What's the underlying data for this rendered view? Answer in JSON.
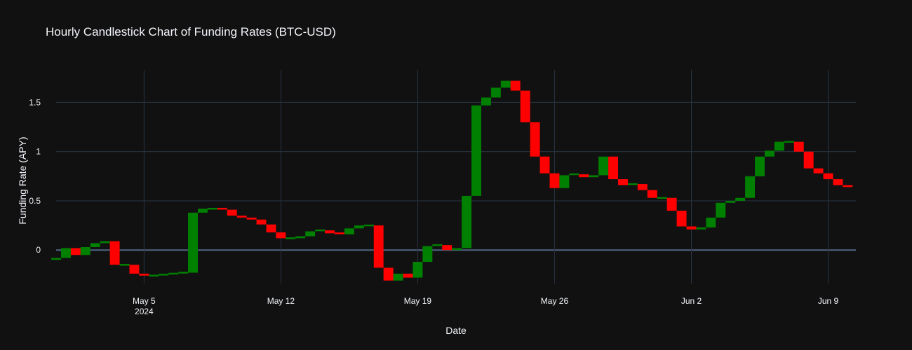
{
  "chart_data": {
    "type": "candlestick",
    "title": "Hourly Candlestick Chart of Funding Rates (BTC-USD)",
    "x_label": "Date",
    "y_label": "Funding Rate (APY)",
    "x": [
      "2024-04-30 12:00",
      "2024-05-01 00:00",
      "2024-05-01 12:00",
      "2024-05-02 00:00",
      "2024-05-02 12:00",
      "2024-05-03 00:00",
      "2024-05-03 12:00",
      "2024-05-04 00:00",
      "2024-05-04 12:00",
      "2024-05-05 00:00",
      "2024-05-05 12:00",
      "2024-05-06 00:00",
      "2024-05-06 12:00",
      "2024-05-07 00:00",
      "2024-05-07 12:00",
      "2024-05-08 00:00",
      "2024-05-08 12:00",
      "2024-05-09 00:00",
      "2024-05-09 12:00",
      "2024-05-10 00:00",
      "2024-05-10 12:00",
      "2024-05-11 00:00",
      "2024-05-11 12:00",
      "2024-05-12 00:00",
      "2024-05-12 12:00",
      "2024-05-13 00:00",
      "2024-05-13 12:00",
      "2024-05-14 00:00",
      "2024-05-14 12:00",
      "2024-05-15 00:00",
      "2024-05-15 12:00",
      "2024-05-16 00:00",
      "2024-05-16 12:00",
      "2024-05-17 00:00",
      "2024-05-17 12:00",
      "2024-05-18 00:00",
      "2024-05-18 12:00",
      "2024-05-19 00:00",
      "2024-05-19 12:00",
      "2024-05-20 00:00",
      "2024-05-20 12:00",
      "2024-05-21 00:00",
      "2024-05-21 12:00",
      "2024-05-22 00:00",
      "2024-05-22 12:00",
      "2024-05-23 00:00",
      "2024-05-23 12:00",
      "2024-05-24 00:00",
      "2024-05-24 12:00",
      "2024-05-25 00:00",
      "2024-05-25 12:00",
      "2024-05-26 00:00",
      "2024-05-26 12:00",
      "2024-05-27 00:00",
      "2024-05-27 12:00",
      "2024-05-28 00:00",
      "2024-05-28 12:00",
      "2024-05-29 00:00",
      "2024-05-29 12:00",
      "2024-05-30 00:00",
      "2024-05-30 12:00",
      "2024-05-31 00:00",
      "2024-05-31 12:00",
      "2024-06-01 00:00",
      "2024-06-01 12:00",
      "2024-06-02 00:00",
      "2024-06-02 12:00",
      "2024-06-03 00:00",
      "2024-06-03 12:00",
      "2024-06-04 00:00",
      "2024-06-04 12:00",
      "2024-06-05 00:00",
      "2024-06-05 12:00",
      "2024-06-06 00:00",
      "2024-06-06 12:00",
      "2024-06-07 00:00",
      "2024-06-07 12:00",
      "2024-06-08 00:00",
      "2024-06-08 12:00",
      "2024-06-09 00:00",
      "2024-06-09 12:00",
      "2024-06-10 00:00"
    ],
    "open": [
      -0.1,
      -0.08,
      0.02,
      -0.05,
      0.03,
      0.07,
      0.09,
      -0.15,
      -0.15,
      -0.24,
      -0.26,
      -0.26,
      -0.25,
      -0.24,
      -0.23,
      0.38,
      0.42,
      0.42,
      0.41,
      0.35,
      0.33,
      0.31,
      0.26,
      0.18,
      0.12,
      0.12,
      0.14,
      0.19,
      0.2,
      0.17,
      0.16,
      0.22,
      0.25,
      0.25,
      -0.18,
      -0.31,
      -0.24,
      -0.28,
      -0.12,
      0.04,
      0.05,
      0.0,
      0.02,
      0.55,
      1.47,
      1.55,
      1.65,
      1.72,
      1.62,
      1.3,
      0.95,
      0.78,
      0.63,
      0.76,
      0.77,
      0.74,
      0.76,
      0.95,
      0.72,
      0.66,
      0.67,
      0.61,
      0.53,
      0.53,
      0.4,
      0.24,
      0.21,
      0.23,
      0.33,
      0.48,
      0.5,
      0.53,
      0.75,
      0.95,
      1.01,
      1.1,
      1.1,
      1.0,
      0.83,
      0.78,
      0.72,
      0.66
    ],
    "close": [
      -0.08,
      0.02,
      -0.05,
      0.03,
      0.07,
      0.09,
      -0.15,
      -0.15,
      -0.24,
      -0.26,
      -0.26,
      -0.25,
      -0.24,
      -0.23,
      0.38,
      0.42,
      0.42,
      0.41,
      0.35,
      0.33,
      0.31,
      0.26,
      0.18,
      0.12,
      0.12,
      0.14,
      0.19,
      0.2,
      0.17,
      0.16,
      0.22,
      0.25,
      0.25,
      -0.18,
      -0.31,
      -0.24,
      -0.28,
      -0.12,
      0.04,
      0.05,
      0.0,
      0.02,
      0.55,
      1.47,
      1.55,
      1.65,
      1.72,
      1.62,
      1.3,
      0.95,
      0.78,
      0.63,
      0.76,
      0.77,
      0.74,
      0.76,
      0.95,
      0.72,
      0.66,
      0.67,
      0.61,
      0.53,
      0.53,
      0.4,
      0.24,
      0.21,
      0.23,
      0.33,
      0.48,
      0.5,
      0.53,
      0.75,
      0.95,
      1.01,
      1.1,
      1.1,
      1.0,
      0.83,
      0.78,
      0.72,
      0.66,
      0.64
    ],
    "increasing_color": "#008000",
    "decreasing_color": "#ff0000",
    "xlim": [
      "2024-04-30 12:00",
      "2024-06-10 10:00"
    ],
    "xticks": [
      {
        "value": "2024-05-05 00:00",
        "label": "May 5\n2024"
      },
      {
        "value": "2024-05-12 00:00",
        "label": "May 12"
      },
      {
        "value": "2024-05-19 00:00",
        "label": "May 19"
      },
      {
        "value": "2024-05-26 00:00",
        "label": "May 26"
      },
      {
        "value": "2024-06-02 00:00",
        "label": "Jun 2"
      },
      {
        "value": "2024-06-09 00:00",
        "label": "Jun 9"
      }
    ],
    "ylim": [
      -0.34,
      1.83
    ],
    "yticks": [
      0,
      0.5,
      1,
      1.5
    ],
    "grid": true,
    "zeroline": true
  }
}
